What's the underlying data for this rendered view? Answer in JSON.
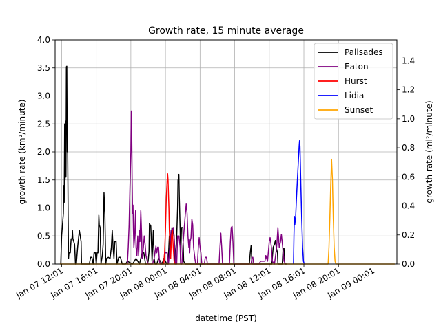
{
  "chart_data": {
    "type": "line",
    "title": "Growth rate, 15 minute average",
    "xlabel": "datetime (PST)",
    "ylabel_left": "growth rate (km²/minute)",
    "ylabel_right": "growth rate (mi²/minute)",
    "ylim_left": [
      0,
      4
    ],
    "ylim_right": [
      0,
      1.544
    ],
    "xlim_hours": [
      -0.75,
      38.75
    ],
    "x_tick_hours": [
      0,
      4,
      8,
      12,
      16,
      20,
      24,
      28,
      32,
      36
    ],
    "x_tick_labels": [
      "Jan 07 12:01",
      "Jan 07 16:01",
      "Jan 07 20:01",
      "Jan 08 00:01",
      "Jan 08 04:01",
      "Jan 08 08:01",
      "Jan 08 12:01",
      "Jan 08 16:01",
      "Jan 08 20:01",
      "Jan 09 00:01"
    ],
    "y_left_ticks": [
      "0.0",
      "0.5",
      "1.0",
      "1.5",
      "2.0",
      "2.5",
      "3.0",
      "3.5",
      "4.0"
    ],
    "y_left_tick_values": [
      0,
      0.5,
      1,
      1.5,
      2,
      2.5,
      3,
      3.5,
      4
    ],
    "y_right_ticks": [
      "0.0",
      "0.2",
      "0.4",
      "0.6",
      "0.8",
      "1.0",
      "1.2",
      "1.4"
    ],
    "y_right_tick_values": [
      0,
      0.2,
      0.4,
      0.6,
      0.8,
      1.0,
      1.2,
      1.4
    ],
    "grid": true,
    "legend": "top-right",
    "series": [
      {
        "name": "Palisades",
        "color": "#000000",
        "points": [
          [
            -0.1,
            0
          ],
          [
            0.0,
            0.5
          ],
          [
            0.1,
            0.7
          ],
          [
            0.2,
            0.9
          ],
          [
            0.25,
            1.4
          ],
          [
            0.3,
            1.1
          ],
          [
            0.35,
            2.5
          ],
          [
            0.4,
            1.5
          ],
          [
            0.45,
            2.55
          ],
          [
            0.5,
            1.55
          ],
          [
            0.55,
            3.52
          ],
          [
            0.6,
            3.53
          ],
          [
            0.65,
            2.0
          ],
          [
            0.7,
            2.0
          ],
          [
            0.75,
            0.9
          ],
          [
            0.8,
            0.1
          ],
          [
            0.85,
            0.2
          ],
          [
            0.95,
            0.2
          ],
          [
            1.0,
            0.2
          ],
          [
            1.1,
            0.45
          ],
          [
            1.2,
            0.45
          ],
          [
            1.25,
            0.6
          ],
          [
            1.3,
            0.45
          ],
          [
            1.4,
            0.4
          ],
          [
            1.5,
            0.35
          ],
          [
            1.6,
            0
          ],
          [
            1.7,
            0
          ],
          [
            1.85,
            0.3
          ],
          [
            1.95,
            0.45
          ],
          [
            2.05,
            0.6
          ],
          [
            2.15,
            0.5
          ],
          [
            2.25,
            0.4
          ],
          [
            2.3,
            0
          ],
          [
            3.2,
            0
          ],
          [
            3.35,
            0.12
          ],
          [
            3.5,
            0.12
          ],
          [
            3.65,
            0
          ],
          [
            3.75,
            0.2
          ],
          [
            3.9,
            0.2
          ],
          [
            4.0,
            0
          ],
          [
            4.1,
            0.2
          ],
          [
            4.2,
            0.2
          ],
          [
            4.3,
            0.87
          ],
          [
            4.35,
            0.7
          ],
          [
            4.45,
            0.65
          ],
          [
            4.55,
            0
          ],
          [
            4.7,
            0.15
          ],
          [
            4.8,
            0.35
          ],
          [
            4.9,
            1.27
          ],
          [
            5.0,
            0.9
          ],
          [
            5.1,
            0
          ],
          [
            5.2,
            0.1
          ],
          [
            5.4,
            0.12
          ],
          [
            5.6,
            0.1
          ],
          [
            5.75,
            0.3
          ],
          [
            5.85,
            0.6
          ],
          [
            5.95,
            0.3
          ],
          [
            6.05,
            0.1
          ],
          [
            6.15,
            0.4
          ],
          [
            6.3,
            0.4
          ],
          [
            6.4,
            0
          ],
          [
            6.6,
            0.12
          ],
          [
            6.8,
            0.12
          ],
          [
            7.0,
            0
          ],
          [
            7.4,
            0
          ],
          [
            7.6,
            0.05
          ],
          [
            8.2,
            0
          ],
          [
            8.4,
            0.05
          ],
          [
            8.6,
            0.1
          ],
          [
            9.0,
            0
          ],
          [
            9.3,
            0.2
          ],
          [
            9.5,
            0.2
          ],
          [
            9.7,
            0
          ],
          [
            9.9,
            0
          ],
          [
            10.0,
            0.05
          ],
          [
            10.1,
            0.22
          ],
          [
            10.15,
            0.72
          ],
          [
            10.3,
            0.68
          ],
          [
            10.35,
            0.5
          ],
          [
            10.45,
            0.05
          ],
          [
            10.6,
            0.6
          ],
          [
            10.7,
            0.1
          ],
          [
            10.8,
            0
          ],
          [
            11.0,
            0
          ],
          [
            11.2,
            0.1
          ],
          [
            11.4,
            0.05
          ],
          [
            11.6,
            0
          ],
          [
            11.8,
            0.1
          ],
          [
            12.0,
            0.05
          ],
          [
            12.15,
            0
          ],
          [
            12.3,
            0
          ],
          [
            12.45,
            0.5
          ],
          [
            12.6,
            0.3
          ],
          [
            12.75,
            0.65
          ],
          [
            12.85,
            0.6
          ],
          [
            13.0,
            0.5
          ],
          [
            13.1,
            0
          ],
          [
            13.3,
            0.5
          ],
          [
            13.4,
            1.0
          ],
          [
            13.45,
            1.5
          ],
          [
            13.5,
            1.45
          ],
          [
            13.55,
            1.6
          ],
          [
            13.6,
            1.2
          ],
          [
            13.7,
            0.6
          ],
          [
            13.75,
            0.05
          ],
          [
            13.85,
            0.65
          ],
          [
            14.0,
            0.65
          ],
          [
            14.1,
            0.05
          ],
          [
            14.3,
            0
          ],
          [
            21.7,
            0
          ],
          [
            21.8,
            0.2
          ],
          [
            21.9,
            0.33
          ],
          [
            22.0,
            0
          ],
          [
            24.3,
            0
          ],
          [
            24.45,
            0.3
          ],
          [
            24.6,
            0.35
          ],
          [
            24.7,
            0.42
          ],
          [
            24.8,
            0.3
          ],
          [
            24.95,
            0.2
          ],
          [
            25.0,
            0
          ],
          [
            25.5,
            0
          ],
          [
            25.6,
            0.28
          ],
          [
            25.7,
            0.28
          ],
          [
            25.8,
            0
          ],
          [
            26.0,
            0
          ]
        ]
      },
      {
        "name": "Eaton",
        "color": "#800080",
        "points": [
          [
            7.6,
            0
          ],
          [
            7.7,
            0.3
          ],
          [
            7.8,
            0.7
          ],
          [
            7.9,
            1.4
          ],
          [
            8.0,
            2.0
          ],
          [
            8.05,
            2.73
          ],
          [
            8.1,
            2.4
          ],
          [
            8.15,
            1.5
          ],
          [
            8.2,
            0.9
          ],
          [
            8.25,
            1.05
          ],
          [
            8.3,
            0.6
          ],
          [
            8.35,
            0.3
          ],
          [
            8.45,
            0.5
          ],
          [
            8.55,
            0.95
          ],
          [
            8.6,
            0.3
          ],
          [
            8.7,
            0.15
          ],
          [
            8.8,
            0.5
          ],
          [
            8.9,
            0.15
          ],
          [
            9.0,
            0.6
          ],
          [
            9.05,
            0.4
          ],
          [
            9.15,
            0.95
          ],
          [
            9.25,
            0.5
          ],
          [
            9.3,
            0.1
          ],
          [
            9.45,
            0.3
          ],
          [
            9.55,
            0.5
          ],
          [
            9.65,
            0.35
          ],
          [
            9.75,
            0.15
          ],
          [
            9.9,
            0.05
          ],
          [
            10.0,
            0
          ],
          [
            10.5,
            0
          ],
          [
            10.7,
            0.1
          ],
          [
            10.9,
            0.32
          ],
          [
            11.0,
            0.2
          ],
          [
            11.1,
            0.3
          ],
          [
            11.2,
            0.3
          ],
          [
            11.3,
            0.05
          ],
          [
            11.4,
            0
          ],
          [
            11.8,
            0
          ],
          [
            11.9,
            0.2
          ],
          [
            12.0,
            0.2
          ],
          [
            12.2,
            0.2
          ],
          [
            12.35,
            0
          ],
          [
            12.5,
            0.3
          ],
          [
            12.65,
            0.6
          ],
          [
            12.8,
            0.6
          ],
          [
            12.9,
            0.65
          ],
          [
            13.0,
            0.5
          ],
          [
            13.1,
            0.2
          ],
          [
            13.15,
            0
          ],
          [
            13.3,
            0
          ],
          [
            13.4,
            0.5
          ],
          [
            13.55,
            0.5
          ],
          [
            13.7,
            0.3
          ],
          [
            13.75,
            0
          ],
          [
            13.9,
            0
          ],
          [
            14.0,
            0.3
          ],
          [
            14.15,
            0.6
          ],
          [
            14.3,
            0.9
          ],
          [
            14.4,
            1.07
          ],
          [
            14.5,
            0.9
          ],
          [
            14.6,
            0.5
          ],
          [
            14.7,
            0.3
          ],
          [
            14.75,
            0.45
          ],
          [
            14.8,
            0.2
          ],
          [
            14.85,
            0.4
          ],
          [
            14.95,
            0.47
          ],
          [
            15.05,
            0.8
          ],
          [
            15.15,
            0.7
          ],
          [
            15.25,
            0.3
          ],
          [
            15.4,
            0.1
          ],
          [
            15.5,
            0
          ],
          [
            15.7,
            0
          ],
          [
            15.8,
            0.3
          ],
          [
            15.9,
            0.47
          ],
          [
            16.0,
            0.3
          ],
          [
            16.1,
            0.2
          ],
          [
            16.2,
            0
          ],
          [
            16.5,
            0
          ],
          [
            16.6,
            0.12
          ],
          [
            16.75,
            0.12
          ],
          [
            16.85,
            0
          ],
          [
            18.2,
            0
          ],
          [
            18.3,
            0.3
          ],
          [
            18.4,
            0.55
          ],
          [
            18.5,
            0.3
          ],
          [
            18.6,
            0
          ],
          [
            19.4,
            0
          ],
          [
            19.5,
            0.4
          ],
          [
            19.6,
            0.65
          ],
          [
            19.7,
            0.67
          ],
          [
            19.8,
            0.4
          ],
          [
            19.9,
            0
          ],
          [
            21.9,
            0
          ],
          [
            22.0,
            0.12
          ],
          [
            22.1,
            0.12
          ],
          [
            22.2,
            0
          ],
          [
            22.8,
            0
          ],
          [
            23.0,
            0.05
          ],
          [
            23.3,
            0.05
          ],
          [
            23.5,
            0.05
          ],
          [
            23.6,
            0.15
          ],
          [
            23.8,
            0.05
          ],
          [
            24.0,
            0.4
          ],
          [
            24.1,
            0.47
          ],
          [
            24.25,
            0.3
          ],
          [
            24.35,
            0.05
          ],
          [
            24.6,
            0
          ],
          [
            24.85,
            0.3
          ],
          [
            25.0,
            0.65
          ],
          [
            25.15,
            0.3
          ],
          [
            25.3,
            0.4
          ],
          [
            25.4,
            0.53
          ],
          [
            25.55,
            0.3
          ],
          [
            25.7,
            0.05
          ],
          [
            25.9,
            0
          ]
        ]
      },
      {
        "name": "Hurst",
        "color": "#ff0000",
        "points": [
          [
            11.8,
            0
          ],
          [
            11.9,
            0.2
          ],
          [
            12.0,
            0.6
          ],
          [
            12.1,
            1.2
          ],
          [
            12.2,
            1.5
          ],
          [
            12.25,
            1.61
          ],
          [
            12.3,
            1.5
          ],
          [
            12.4,
            1.0
          ],
          [
            12.45,
            0.6
          ],
          [
            12.55,
            0.2
          ],
          [
            12.6,
            0.1
          ],
          [
            12.7,
            0.5
          ],
          [
            12.8,
            0.6
          ],
          [
            12.9,
            0.3
          ],
          [
            13.0,
            0.05
          ],
          [
            13.1,
            0
          ]
        ]
      },
      {
        "name": "Lidia",
        "color": "#0000ff",
        "points": [
          [
            26.8,
            0
          ],
          [
            26.85,
            0.5
          ],
          [
            26.9,
            0.85
          ],
          [
            26.95,
            0.7
          ],
          [
            27.05,
            0.85
          ],
          [
            27.15,
            1.2
          ],
          [
            27.25,
            1.5
          ],
          [
            27.35,
            1.8
          ],
          [
            27.45,
            2.1
          ],
          [
            27.5,
            2.2
          ],
          [
            27.55,
            2.1
          ],
          [
            27.65,
            1.4
          ],
          [
            27.75,
            0.8
          ],
          [
            27.85,
            0.3
          ],
          [
            27.95,
            0.05
          ],
          [
            28.05,
            0
          ]
        ]
      },
      {
        "name": "Sunset",
        "color": "#ffa500",
        "points": [
          [
            -0.2,
            0
          ],
          [
            26.0,
            0
          ],
          [
            30.8,
            0
          ],
          [
            30.9,
            0.3
          ],
          [
            31.0,
            0.8
          ],
          [
            31.1,
            1.4
          ],
          [
            31.2,
            1.87
          ],
          [
            31.3,
            1.5
          ],
          [
            31.4,
            0.8
          ],
          [
            31.5,
            0.3
          ],
          [
            31.6,
            0.05
          ],
          [
            31.7,
            0
          ],
          [
            38.5,
            0
          ]
        ]
      }
    ]
  }
}
